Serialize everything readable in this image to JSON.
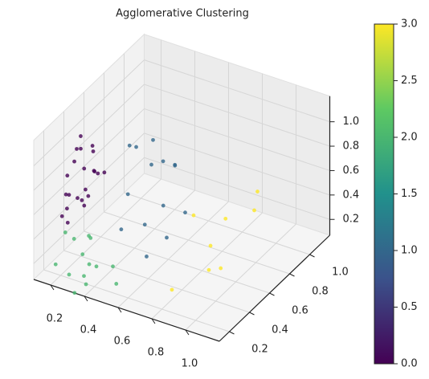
{
  "chart_data": {
    "type": "scatter3d",
    "title": "Agglomerative Clustering",
    "x": [
      0.18,
      0.2,
      0.22,
      0.25,
      0.17,
      0.28,
      0.3,
      0.21,
      0.24,
      0.19,
      0.27,
      0.32,
      0.23,
      0.26,
      0.2,
      0.29,
      0.16,
      0.34,
      0.22,
      0.25,
      0.31,
      0.18,
      0.2,
      0.25,
      0.3,
      0.22,
      0.35,
      0.28,
      0.4,
      0.18,
      0.33,
      0.45,
      0.26,
      0.38,
      0.3,
      0.5,
      0.42,
      0.5,
      0.55,
      0.45,
      0.6,
      0.48,
      0.65,
      0.38,
      0.52,
      0.7,
      0.44,
      0.58,
      0.62,
      0.4,
      0.75,
      0.85,
      0.9,
      0.95,
      1.0,
      0.8,
      1.05,
      0.88
    ],
    "y": [
      0.3,
      0.4,
      0.25,
      0.35,
      0.45,
      0.3,
      0.2,
      0.5,
      0.38,
      0.28,
      0.42,
      0.33,
      0.22,
      0.47,
      0.36,
      0.26,
      0.32,
      0.4,
      0.18,
      0.44,
      0.29,
      0.37,
      0.15,
      0.2,
      0.25,
      0.3,
      0.18,
      0.35,
      0.22,
      0.28,
      0.12,
      0.3,
      0.38,
      0.15,
      0.33,
      0.25,
      0.5,
      0.6,
      0.45,
      0.7,
      0.55,
      0.75,
      0.5,
      0.65,
      0.8,
      0.6,
      0.4,
      0.7,
      0.35,
      0.55,
      0.6,
      0.75,
      0.5,
      0.9,
      0.45,
      0.3,
      0.7,
      0.55
    ],
    "z": [
      0.8,
      0.95,
      0.7,
      0.85,
      1.0,
      0.6,
      0.75,
      0.9,
      0.65,
      0.55,
      0.78,
      0.88,
      0.5,
      0.72,
      0.98,
      0.68,
      0.62,
      0.82,
      0.58,
      0.92,
      0.7,
      0.86,
      0.2,
      0.1,
      0.25,
      0.3,
      0.15,
      0.08,
      0.22,
      0.35,
      0.05,
      0.18,
      0.28,
      0.12,
      0.32,
      0.1,
      0.6,
      0.8,
      0.45,
      0.9,
      0.55,
      0.7,
      0.35,
      0.85,
      0.65,
      0.5,
      0.4,
      0.75,
      0.3,
      0.95,
      0.5,
      0.4,
      0.2,
      0.55,
      0.3,
      0.15,
      0.6,
      0.35
    ],
    "c": [
      0,
      0,
      0,
      0,
      0,
      0,
      0,
      0,
      0,
      0,
      0,
      0,
      0,
      0,
      0,
      0,
      0,
      0,
      0,
      0,
      0,
      0,
      2,
      2,
      2,
      2,
      2,
      2,
      2,
      2,
      2,
      2,
      2,
      2,
      2,
      2,
      1,
      1,
      1,
      1,
      1,
      1,
      1,
      1,
      1,
      1,
      1,
      1,
      1,
      1,
      3,
      3,
      3,
      3,
      3,
      3,
      3,
      3
    ],
    "colormap": [
      "#440154",
      "#3b528b",
      "#21918c",
      "#5ec962",
      "#fde725"
    ],
    "clim": [
      0,
      3
    ],
    "cticks": [
      {
        "value": 0,
        "label": "0.0"
      },
      0.5,
      {
        "value": 1,
        "label": "1.0"
      },
      1.5,
      {
        "value": 2,
        "label": "2.0"
      },
      2.5,
      {
        "value": 3,
        "label": "3.0"
      }
    ],
    "xlim": [
      0.1,
      1.2
    ],
    "ylim": [
      0.1,
      1.2
    ],
    "zlim": [
      0.07,
      1.21
    ],
    "xticks": [
      0.2,
      0.4,
      0.6,
      0.8,
      {
        "value": 1,
        "label": "1.0"
      }
    ],
    "yticks": [
      0.2,
      0.4,
      0.6,
      0.8,
      {
        "value": 1,
        "label": "1.0"
      }
    ],
    "zticks": [
      0.2,
      0.4,
      0.6,
      0.8,
      {
        "value": 1,
        "label": "1.0"
      }
    ],
    "grid": true
  }
}
